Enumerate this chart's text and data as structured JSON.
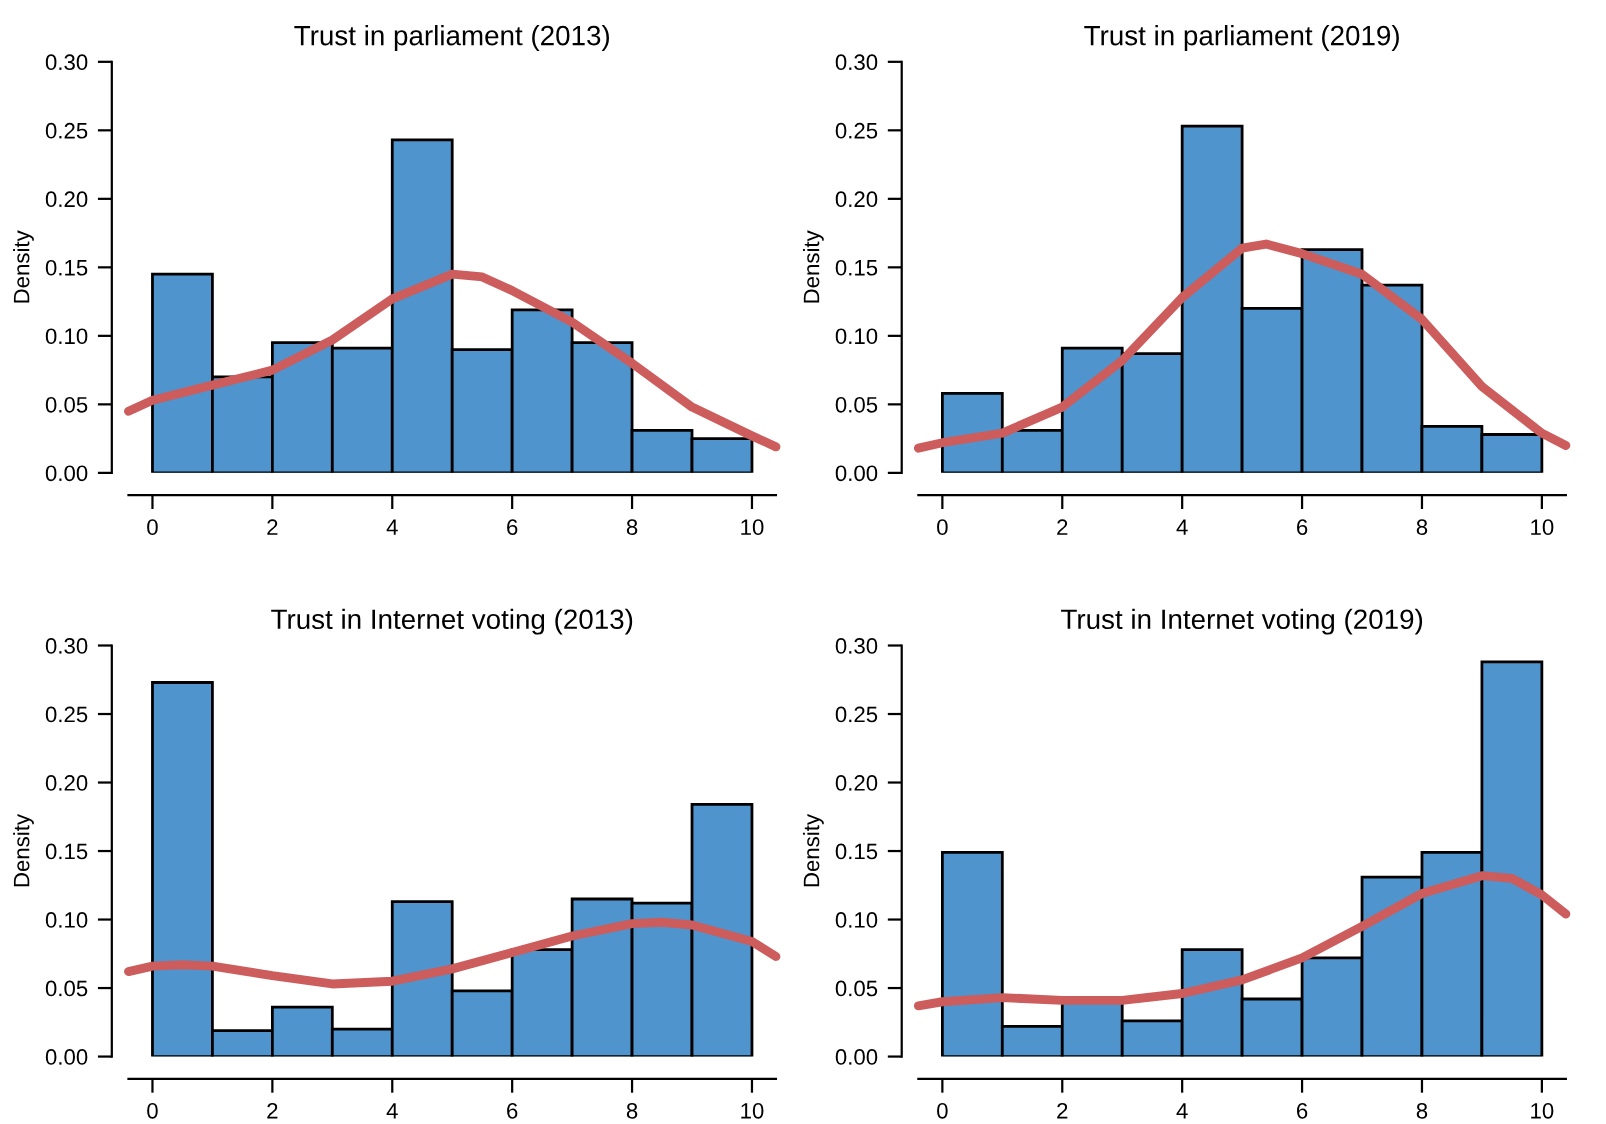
{
  "chart_data": [
    {
      "type": "histogram",
      "title": "Trust in parliament (2013)",
      "ylabel": "Density",
      "xlim": [
        -0.4,
        10.4
      ],
      "ylim": [
        0,
        0.3
      ],
      "xticks": [
        0,
        2,
        4,
        6,
        8,
        10
      ],
      "yticks": [
        {
          "value": 0,
          "label": "0.00"
        },
        {
          "value": 0.05,
          "label": "0.05"
        },
        {
          "value": 0.1,
          "label": "0.10"
        },
        {
          "value": 0.15,
          "label": "0.15"
        },
        {
          "value": 0.2,
          "label": "0.20"
        },
        {
          "value": 0.25,
          "label": "0.25"
        },
        {
          "value": 0.3,
          "label": "0.30"
        }
      ],
      "grid": false,
      "legend": false,
      "series": [
        {
          "color": "#4f94cd",
          "bins": [
            0,
            1,
            2,
            3,
            4,
            5,
            6,
            7,
            8,
            9,
            10
          ],
          "values": [
            0.145,
            0.07,
            0.095,
            0.091,
            0.243,
            0.09,
            0.119,
            0.095,
            0.031,
            0.025
          ]
        },
        {
          "type": "line",
          "color": "#cd5c5c",
          "x": [
            -0.4,
            0,
            1,
            2,
            3,
            4,
            5,
            5.5,
            6,
            7,
            8,
            9,
            10,
            10.4
          ],
          "values": [
            0.045,
            0.053,
            0.064,
            0.075,
            0.097,
            0.127,
            0.145,
            0.143,
            0.133,
            0.11,
            0.08,
            0.048,
            0.027,
            0.019
          ]
        }
      ]
    },
    {
      "type": "histogram",
      "title": "Trust in parliament (2019)",
      "ylabel": "Density",
      "xlim": [
        -0.4,
        10.4
      ],
      "ylim": [
        0,
        0.3
      ],
      "xticks": [
        0,
        2,
        4,
        6,
        8,
        10
      ],
      "yticks": [
        {
          "value": 0,
          "label": "0.00"
        },
        {
          "value": 0.05,
          "label": "0.05"
        },
        {
          "value": 0.1,
          "label": "0.10"
        },
        {
          "value": 0.15,
          "label": "0.15"
        },
        {
          "value": 0.2,
          "label": "0.20"
        },
        {
          "value": 0.25,
          "label": "0.25"
        },
        {
          "value": 0.3,
          "label": "0.30"
        }
      ],
      "grid": false,
      "legend": false,
      "series": [
        {
          "color": "#4f94cd",
          "bins": [
            0,
            1,
            2,
            3,
            4,
            5,
            6,
            7,
            8,
            9,
            10
          ],
          "values": [
            0.058,
            0.031,
            0.091,
            0.087,
            0.253,
            0.12,
            0.163,
            0.137,
            0.034,
            0.028
          ]
        },
        {
          "type": "line",
          "color": "#cd5c5c",
          "x": [
            -0.4,
            0,
            1,
            2,
            3,
            4,
            5,
            5.4,
            6,
            7,
            8,
            9,
            10,
            10.4
          ],
          "values": [
            0.018,
            0.022,
            0.029,
            0.048,
            0.082,
            0.128,
            0.164,
            0.167,
            0.16,
            0.145,
            0.112,
            0.063,
            0.029,
            0.02
          ]
        }
      ]
    },
    {
      "type": "histogram",
      "title": "Trust in Internet voting (2013)",
      "ylabel": "Density",
      "xlim": [
        -0.4,
        10.4
      ],
      "ylim": [
        0,
        0.3
      ],
      "xticks": [
        0,
        2,
        4,
        6,
        8,
        10
      ],
      "yticks": [
        {
          "value": 0,
          "label": "0.00"
        },
        {
          "value": 0.05,
          "label": "0.05"
        },
        {
          "value": 0.1,
          "label": "0.10"
        },
        {
          "value": 0.15,
          "label": "0.15"
        },
        {
          "value": 0.2,
          "label": "0.20"
        },
        {
          "value": 0.25,
          "label": "0.25"
        },
        {
          "value": 0.3,
          "label": "0.30"
        }
      ],
      "grid": false,
      "legend": false,
      "series": [
        {
          "color": "#4f94cd",
          "bins": [
            0,
            1,
            2,
            3,
            4,
            5,
            6,
            7,
            8,
            9,
            10
          ],
          "values": [
            0.273,
            0.019,
            0.036,
            0.02,
            0.113,
            0.048,
            0.078,
            0.115,
            0.112,
            0.184
          ]
        },
        {
          "type": "line",
          "color": "#cd5c5c",
          "x": [
            -0.4,
            0,
            0.5,
            1,
            2,
            3,
            4,
            5,
            6,
            7,
            8,
            8.5,
            9,
            10,
            10.4
          ],
          "values": [
            0.062,
            0.066,
            0.067,
            0.066,
            0.059,
            0.053,
            0.055,
            0.064,
            0.076,
            0.088,
            0.097,
            0.098,
            0.096,
            0.084,
            0.073
          ]
        }
      ]
    },
    {
      "type": "histogram",
      "title": "Trust in Internet voting (2019)",
      "ylabel": "Density",
      "xlim": [
        -0.4,
        10.4
      ],
      "ylim": [
        0,
        0.3
      ],
      "xticks": [
        0,
        2,
        4,
        6,
        8,
        10
      ],
      "yticks": [
        {
          "value": 0,
          "label": "0.00"
        },
        {
          "value": 0.05,
          "label": "0.05"
        },
        {
          "value": 0.1,
          "label": "0.10"
        },
        {
          "value": 0.15,
          "label": "0.15"
        },
        {
          "value": 0.2,
          "label": "0.20"
        },
        {
          "value": 0.25,
          "label": "0.25"
        },
        {
          "value": 0.3,
          "label": "0.30"
        }
      ],
      "grid": false,
      "legend": false,
      "series": [
        {
          "color": "#4f94cd",
          "bins": [
            0,
            1,
            2,
            3,
            4,
            5,
            6,
            7,
            8,
            9,
            10
          ],
          "values": [
            0.149,
            0.022,
            0.04,
            0.026,
            0.078,
            0.042,
            0.072,
            0.131,
            0.149,
            0.288
          ]
        },
        {
          "type": "line",
          "color": "#cd5c5c",
          "x": [
            -0.4,
            0,
            1,
            2,
            3,
            4,
            5,
            6,
            7,
            8,
            9,
            9.5,
            10,
            10.4
          ],
          "values": [
            0.037,
            0.04,
            0.043,
            0.041,
            0.041,
            0.046,
            0.056,
            0.072,
            0.095,
            0.119,
            0.132,
            0.13,
            0.118,
            0.104
          ]
        }
      ]
    }
  ]
}
